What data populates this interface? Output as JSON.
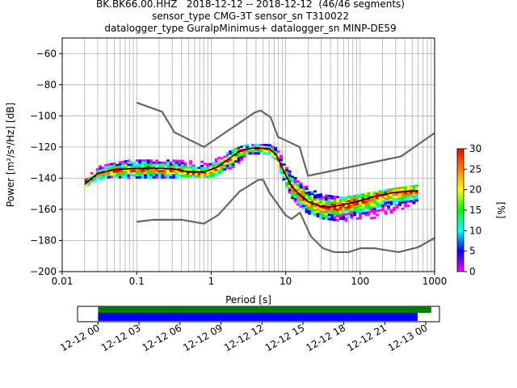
{
  "chart_data": {
    "type": "heatmap",
    "title_lines": [
      "BK.BK66.00.HHZ   2018-12-12 -- 2018-12-12  (46/46 segments)",
      "sensor_type CMG-3T sensor_sn T310022",
      "datalogger_type GuralpMinimus+ datalogger_sn MINP-DE59"
    ],
    "xlabel": "Period [s]",
    "ylabel": "Power [m²/s⁴/Hz] [dB]",
    "x_scale": "log",
    "xlim": [
      0.01,
      1000
    ],
    "ylim": [
      -200,
      -50
    ],
    "x_ticks": [
      {
        "value": 0.01,
        "label": "0.01"
      },
      {
        "value": 0.1,
        "label": "0.1"
      },
      {
        "value": 1,
        "label": "1"
      },
      {
        "value": 10,
        "label": "10"
      },
      {
        "value": 100,
        "label": "100"
      },
      {
        "value": 1000,
        "label": "1000"
      }
    ],
    "y_ticks": [
      {
        "value": -60,
        "label": "−60"
      },
      {
        "value": -80,
        "label": "−80"
      },
      {
        "value": -100,
        "label": "−100"
      },
      {
        "value": -120,
        "label": "−120"
      },
      {
        "value": -140,
        "label": "−140"
      },
      {
        "value": -160,
        "label": "−160"
      },
      {
        "value": -180,
        "label": "−180"
      },
      {
        "value": -200,
        "label": "−200"
      }
    ],
    "grid": true,
    "noise_models": [
      {
        "id": "nhnm",
        "points": [
          [
            0.1,
            -91.5
          ],
          [
            0.22,
            -97.4
          ],
          [
            0.32,
            -110.5
          ],
          [
            0.8,
            -120
          ],
          [
            3.8,
            -98
          ],
          [
            4.6,
            -96.5
          ],
          [
            6.3,
            -101
          ],
          [
            7.9,
            -113.5
          ],
          [
            15.4,
            -120
          ],
          [
            20,
            -138.5
          ],
          [
            354.8,
            -126
          ],
          [
            1000,
            -111
          ]
        ]
      },
      {
        "id": "nlnm",
        "points": [
          [
            0.1,
            -168
          ],
          [
            0.17,
            -166.7
          ],
          [
            0.4,
            -166.7
          ],
          [
            0.8,
            -169.2
          ],
          [
            1.24,
            -163.7
          ],
          [
            2.4,
            -148.6
          ],
          [
            4.3,
            -141.1
          ],
          [
            5,
            -141.1
          ],
          [
            6,
            -149
          ],
          [
            10,
            -163.8
          ],
          [
            12,
            -166.2
          ],
          [
            15.6,
            -162.1
          ],
          [
            21.9,
            -177.5
          ],
          [
            31.6,
            -185
          ],
          [
            45,
            -187.5
          ],
          [
            70,
            -187.5
          ],
          [
            101,
            -185
          ],
          [
            154,
            -185
          ],
          [
            328,
            -187.5
          ],
          [
            600,
            -184.4
          ],
          [
            1000,
            -178.4
          ]
        ]
      }
    ],
    "ppsd_mode": [
      [
        0.02,
        -144
      ],
      [
        0.025,
        -140
      ],
      [
        0.03,
        -137
      ],
      [
        0.05,
        -134.5
      ],
      [
        0.08,
        -134
      ],
      [
        0.15,
        -133.5
      ],
      [
        0.3,
        -134
      ],
      [
        0.5,
        -136
      ],
      [
        0.8,
        -136
      ],
      [
        1.2,
        -133
      ],
      [
        1.8,
        -127
      ],
      [
        2.5,
        -122
      ],
      [
        4,
        -120.5
      ],
      [
        6,
        -121
      ],
      [
        7.5,
        -125
      ],
      [
        10,
        -138
      ],
      [
        12,
        -145
      ],
      [
        15,
        -150
      ],
      [
        20,
        -155
      ],
      [
        30,
        -158
      ],
      [
        40,
        -158.5
      ],
      [
        60,
        -157
      ],
      [
        90,
        -155
      ],
      [
        150,
        -152
      ],
      [
        300,
        -149
      ],
      [
        600,
        -148
      ]
    ],
    "ppsd_band": {
      "upper": [
        [
          0.02,
          -141
        ],
        [
          0.03,
          -132
        ],
        [
          0.08,
          -128
        ],
        [
          0.3,
          -128
        ],
        [
          1,
          -129
        ],
        [
          2,
          -121
        ],
        [
          3,
          -118
        ],
        [
          6,
          -118
        ],
        [
          8,
          -121
        ],
        [
          10,
          -132
        ],
        [
          15,
          -142
        ],
        [
          30,
          -150
        ],
        [
          60,
          -152
        ],
        [
          100,
          -150
        ],
        [
          300,
          -146
        ],
        [
          600,
          -144
        ]
      ],
      "lower": [
        [
          0.02,
          -146
        ],
        [
          0.03,
          -140
        ],
        [
          0.08,
          -139
        ],
        [
          0.3,
          -139
        ],
        [
          1,
          -139
        ],
        [
          2,
          -132
        ],
        [
          3,
          -125
        ],
        [
          6,
          -124
        ],
        [
          8,
          -130
        ],
        [
          10,
          -146
        ],
        [
          15,
          -158
        ],
        [
          20,
          -162
        ],
        [
          40,
          -167
        ],
        [
          100,
          -167
        ],
        [
          300,
          -161
        ],
        [
          600,
          -157
        ]
      ]
    },
    "colorbar": {
      "label": "[%]",
      "min": 0,
      "max": 30,
      "ticks": [
        {
          "value": 0,
          "label": "0"
        },
        {
          "value": 5,
          "label": "5"
        },
        {
          "value": 10,
          "label": "10"
        },
        {
          "value": 15,
          "label": "15"
        },
        {
          "value": 20,
          "label": "20"
        },
        {
          "value": 25,
          "label": "25"
        },
        {
          "value": 30,
          "label": "30"
        }
      ],
      "colors": [
        "#ff00ff",
        "#0000ff",
        "#00ffff",
        "#00ff00",
        "#ffff00",
        "#ff8000",
        "#ff0000"
      ]
    },
    "timeline": {
      "tick_labels": [
        "12-12 00",
        "12-12 03",
        "12-12 06",
        "12-12 09",
        "12-12 12",
        "12-12 15",
        "12-12 18",
        "12-12 21",
        "12-13 00"
      ],
      "range_hours": [
        -1.5,
        25
      ],
      "bars": [
        {
          "start_hours": 0,
          "end_hours": 24.4,
          "color": "#008000"
        },
        {
          "start_hours": 0,
          "end_hours": 23.4,
          "color": "#0000ff"
        }
      ]
    }
  }
}
